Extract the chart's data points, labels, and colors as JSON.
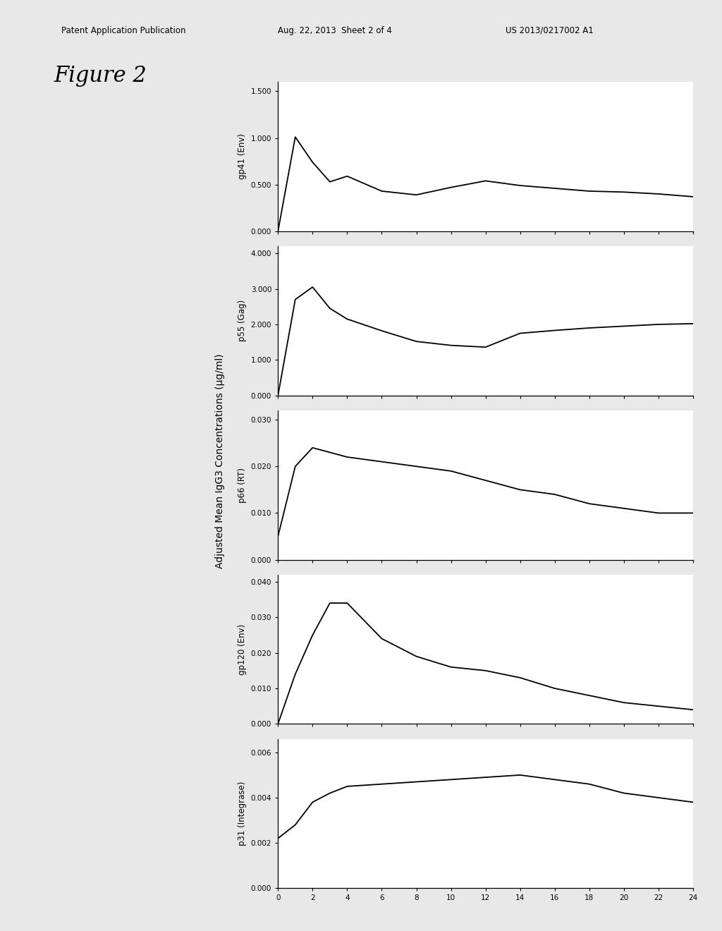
{
  "patent_line1": "Patent Application Publication",
  "patent_line2": "Aug. 22, 2013  Sheet 2 of 4",
  "patent_line3": "US 2013/0217002 A1",
  "figure_label": "Figure 2",
  "ylabel_shared": "Adjusted Mean IgG3 Concentrations (µg/ml)",
  "x_ticks": [
    0,
    2,
    4,
    6,
    8,
    10,
    12,
    14,
    16,
    18,
    20,
    22,
    24
  ],
  "subplots": [
    {
      "ylabel": "gp41 (Env)",
      "ylim": [
        0.0,
        1.6
      ],
      "yticks": [
        0.0,
        0.5,
        1.0,
        1.5
      ],
      "ytick_labels": [
        "0.000",
        "0.500",
        "1.000",
        "1.500"
      ],
      "x": [
        0,
        1,
        2,
        3,
        4,
        6,
        8,
        10,
        12,
        14,
        16,
        18,
        20,
        22,
        24
      ],
      "y": [
        0.0,
        1.01,
        0.74,
        0.53,
        0.59,
        0.43,
        0.39,
        0.47,
        0.54,
        0.49,
        0.46,
        0.43,
        0.42,
        0.4,
        0.37
      ]
    },
    {
      "ylabel": "p55 (Gag)",
      "ylim": [
        0.0,
        4.2
      ],
      "yticks": [
        0.0,
        1.0,
        2.0,
        3.0,
        4.0
      ],
      "ytick_labels": [
        "0.000",
        "1.000",
        "2.000",
        "3.000",
        "4.000"
      ],
      "x": [
        0,
        1,
        2,
        3,
        4,
        6,
        8,
        10,
        12,
        14,
        16,
        18,
        20,
        22,
        24
      ],
      "y": [
        0.0,
        2.7,
        3.05,
        2.45,
        2.15,
        1.82,
        1.52,
        1.41,
        1.36,
        1.75,
        1.83,
        1.9,
        1.95,
        2.0,
        2.02
      ]
    },
    {
      "ylabel": "p66 (RT)",
      "ylim": [
        0.0,
        0.032
      ],
      "yticks": [
        0.0,
        0.01,
        0.02,
        0.03
      ],
      "ytick_labels": [
        "0.000",
        "0.010",
        "0.020",
        "0.030"
      ],
      "x": [
        0,
        1,
        2,
        3,
        4,
        6,
        8,
        10,
        12,
        14,
        16,
        18,
        20,
        22,
        24
      ],
      "y": [
        0.005,
        0.02,
        0.024,
        0.023,
        0.022,
        0.021,
        0.02,
        0.019,
        0.017,
        0.015,
        0.014,
        0.012,
        0.011,
        0.01,
        0.01
      ]
    },
    {
      "ylabel": "gp120 (Env)",
      "ylim": [
        0.0,
        0.042
      ],
      "yticks": [
        0.0,
        0.01,
        0.02,
        0.03,
        0.04
      ],
      "ytick_labels": [
        "0.000",
        "0.010",
        "0.020",
        "0.030",
        "0.040"
      ],
      "x": [
        0,
        1,
        2,
        3,
        4,
        6,
        8,
        10,
        12,
        14,
        16,
        18,
        20,
        22,
        24
      ],
      "y": [
        0.0,
        0.014,
        0.025,
        0.034,
        0.034,
        0.024,
        0.019,
        0.016,
        0.015,
        0.013,
        0.01,
        0.008,
        0.006,
        0.005,
        0.004
      ]
    },
    {
      "ylabel": "p31 (Integrase)",
      "ylim": [
        0.0,
        0.0066
      ],
      "yticks": [
        0.0,
        0.002,
        0.004,
        0.006
      ],
      "ytick_labels": [
        "0.000",
        "0.002",
        "0.004",
        "0.006"
      ],
      "x": [
        0,
        1,
        2,
        3,
        4,
        6,
        8,
        10,
        12,
        14,
        16,
        18,
        20,
        22,
        24
      ],
      "y": [
        0.0022,
        0.0028,
        0.0038,
        0.0042,
        0.0045,
        0.0046,
        0.0047,
        0.0048,
        0.0049,
        0.005,
        0.0048,
        0.0046,
        0.0042,
        0.004,
        0.0038
      ]
    }
  ],
  "bg_color": "#e8e8e8",
  "plot_bg_color": "#ffffff"
}
